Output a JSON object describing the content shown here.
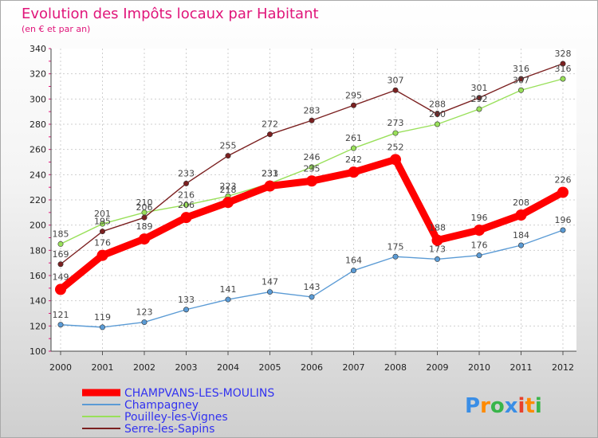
{
  "chart_data": {
    "type": "line",
    "title": "Evolution des Impôts locaux par Habitant",
    "subtitle": "(en € et par an)",
    "xlabel": "",
    "ylabel": "",
    "x": [
      "2000",
      "2001",
      "2002",
      "2003",
      "2004",
      "2005",
      "2006",
      "2007",
      "2008",
      "2009",
      "2010",
      "2011",
      "2012"
    ],
    "ylim": [
      100,
      340
    ],
    "yticks": [
      "100",
      "120",
      "140",
      "160",
      "180",
      "200",
      "220",
      "240",
      "260",
      "280",
      "300",
      "320",
      "340"
    ],
    "grid": true,
    "series": [
      {
        "name": "CHAMPVANS-LES-MOULINS",
        "color": "#ff0000",
        "values": [
          149,
          176,
          189,
          206,
          218,
          231,
          235,
          242,
          252,
          188,
          196,
          208,
          226
        ]
      },
      {
        "name": "Champagney",
        "color": "#5b9bd5",
        "values": [
          121,
          119,
          123,
          133,
          141,
          147,
          143,
          164,
          175,
          173,
          176,
          184,
          196
        ]
      },
      {
        "name": "Pouilley-les-Vignes",
        "color": "#99e05a",
        "values": [
          185,
          201,
          210,
          216,
          223,
          233,
          246,
          261,
          273,
          280,
          292,
          307,
          316
        ]
      },
      {
        "name": "Serre-les-Sapins",
        "color": "#7b2020",
        "values": [
          169,
          195,
          206,
          233,
          255,
          272,
          283,
          295,
          307,
          288,
          301,
          316,
          328
        ]
      }
    ]
  },
  "brand": {
    "text": "Proxiti",
    "letters": [
      "P",
      "r",
      "o",
      "x",
      "i",
      "t",
      "i"
    ],
    "colors": [
      "#3a8ee6",
      "#ff8a00",
      "#39b54a",
      "#3a8ee6",
      "#e8412c",
      "#ff8a00",
      "#39b54a"
    ]
  }
}
